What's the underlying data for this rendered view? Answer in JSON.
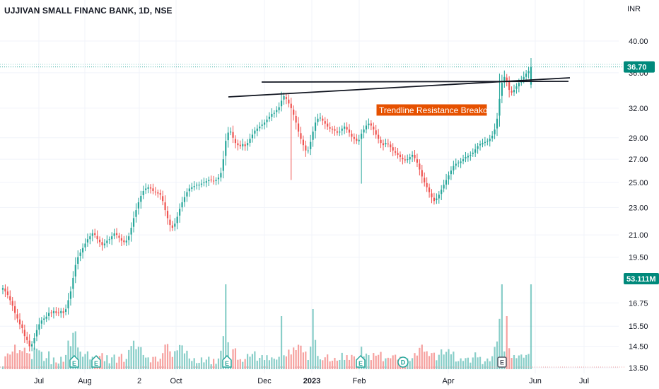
{
  "chart_data": {
    "type": "candlestick",
    "title": "UJJIVAN SMALL FINANC BANK, 1D, NSE",
    "currency": "INR",
    "x_ticks": [
      "Jul",
      "Aug",
      "2",
      "Oct",
      "Dec",
      "2023",
      "Feb",
      "Apr",
      "Jun",
      "Jul"
    ],
    "y_ticks": [
      "40.00",
      "36.00",
      "32.00",
      "29.00",
      "27.00",
      "25.00",
      "23.00",
      "21.00",
      "19.50",
      "16.75",
      "15.50",
      "14.50",
      "13.50"
    ],
    "last_price": "36.70",
    "last_volume": "53.111M",
    "annotation": "Trendline Resistance Breakout",
    "events": [
      {
        "label": "E",
        "kind": "earnings"
      },
      {
        "label": "E",
        "kind": "earnings"
      },
      {
        "label": "E",
        "kind": "earnings"
      },
      {
        "label": "E",
        "kind": "earnings"
      },
      {
        "label": "D",
        "kind": "dividend"
      },
      {
        "label": "E",
        "kind": "earnings-upcoming"
      }
    ],
    "colors": {
      "up": "#26a69a",
      "down": "#ef5350",
      "price_tag": "#00897b",
      "annotation": "#e65100"
    },
    "closes": [
      17.6,
      17.4,
      17.2,
      16.9,
      16.6,
      16.2,
      15.9,
      15.6,
      15.4,
      15.0,
      14.8,
      14.5,
      14.6,
      14.9,
      15.3,
      15.6,
      15.8,
      15.9,
      16.0,
      16.2,
      16.2,
      16.3,
      16.2,
      16.2,
      16.3,
      16.2,
      16.4,
      16.9,
      17.4,
      18.2,
      19.0,
      19.5,
      19.8,
      20.1,
      20.4,
      20.7,
      20.9,
      21.1,
      21.0,
      20.7,
      20.5,
      20.3,
      20.4,
      20.6,
      20.7,
      20.9,
      21.1,
      21.0,
      20.8,
      20.6,
      20.5,
      20.6,
      20.9,
      21.5,
      22.2,
      22.8,
      23.4,
      23.9,
      24.3,
      24.5,
      24.6,
      24.5,
      24.3,
      24.2,
      24.1,
      24.0,
      23.5,
      22.8,
      22.2,
      21.7,
      21.5,
      21.8,
      22.3,
      22.9,
      23.4,
      23.8,
      24.2,
      24.5,
      24.6,
      24.7,
      24.8,
      24.8,
      24.9,
      25.0,
      25.1,
      25.2,
      25.2,
      25.1,
      25.2,
      25.4,
      25.8,
      27.0,
      28.7,
      29.5,
      29.6,
      29.0,
      28.5,
      28.3,
      28.2,
      28.4,
      28.2,
      28.5,
      28.9,
      29.3,
      29.7,
      29.9,
      30.1,
      30.3,
      30.5,
      30.8,
      31.1,
      31.4,
      31.5,
      31.8,
      32.1,
      32.8,
      33.3,
      33.0,
      32.5,
      32.0,
      31.3,
      30.5,
      29.6,
      28.9,
      28.3,
      27.8,
      27.8,
      28.6,
      29.6,
      30.5,
      30.9,
      31.0,
      30.7,
      30.4,
      30.1,
      29.9,
      29.8,
      29.7,
      29.5,
      29.6,
      29.9,
      30.1,
      29.8,
      29.5,
      29.1,
      28.9,
      28.7,
      28.8,
      29.4,
      29.8,
      30.2,
      30.4,
      30.2,
      29.8,
      29.3,
      28.9,
      28.5,
      28.3,
      28.5,
      28.4,
      28.1,
      27.8,
      27.6,
      27.4,
      27.2,
      27.0,
      26.9,
      27.0,
      27.2,
      27.4,
      27.1,
      26.7,
      26.1,
      25.5,
      25.0,
      24.6,
      24.2,
      23.8,
      23.5,
      23.7,
      24.0,
      24.4,
      24.8,
      25.2,
      25.6,
      26.0,
      26.4,
      26.6,
      26.7,
      26.8,
      27.0,
      27.2,
      27.3,
      27.4,
      27.6,
      27.9,
      28.2,
      28.4,
      28.5,
      28.6,
      28.7,
      28.9,
      29.2,
      29.8,
      30.9,
      33.0,
      34.8,
      35.5,
      35.0,
      34.0,
      33.7,
      34.0,
      34.4,
      34.8,
      35.1,
      35.5,
      35.9,
      36.2,
      36.7
    ]
  }
}
